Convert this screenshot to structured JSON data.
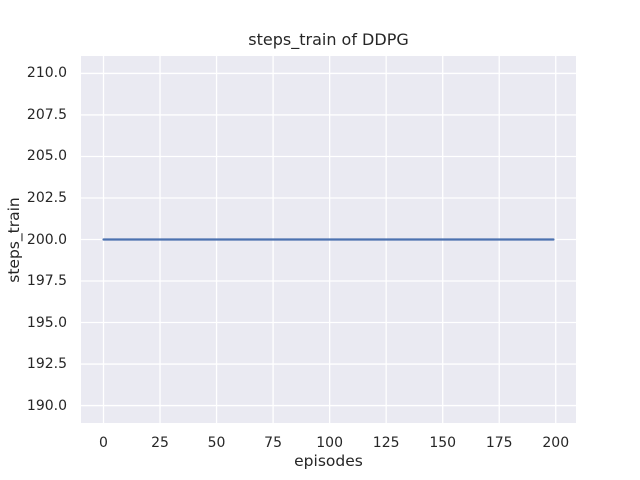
{
  "chart_data": {
    "type": "line",
    "title": "steps_train of DDPG",
    "xlabel": "episodes",
    "ylabel": "steps_train",
    "xlim": [
      -9.95,
      208.95
    ],
    "ylim": [
      188.95,
      211.05
    ],
    "x_ticks": [
      0,
      25,
      50,
      75,
      100,
      125,
      150,
      175,
      200
    ],
    "x_tick_labels": [
      "0",
      "25",
      "50",
      "75",
      "100",
      "125",
      "150",
      "175",
      "200"
    ],
    "y_ticks": [
      190,
      192.5,
      195,
      197.5,
      200,
      202.5,
      205,
      207.5,
      210
    ],
    "y_tick_labels": [
      "190.0",
      "192.5",
      "195.0",
      "197.5",
      "200.0",
      "202.5",
      "205.0",
      "207.5",
      "210.0"
    ],
    "grid": true,
    "legend_position": "none",
    "series": [
      {
        "name": "steps_train",
        "type": "line",
        "color": "#4C72B0",
        "x": [
          0,
          199
        ],
        "y": [
          200,
          200
        ],
        "note": "constant value 200 across all episodes 0-199"
      }
    ]
  },
  "style": {
    "figure_background": "#ffffff",
    "plot_background": "#EAEAF2",
    "grid_color": "#FFFFFF",
    "text_color": "#262626",
    "line_color": "#4C72B0"
  }
}
